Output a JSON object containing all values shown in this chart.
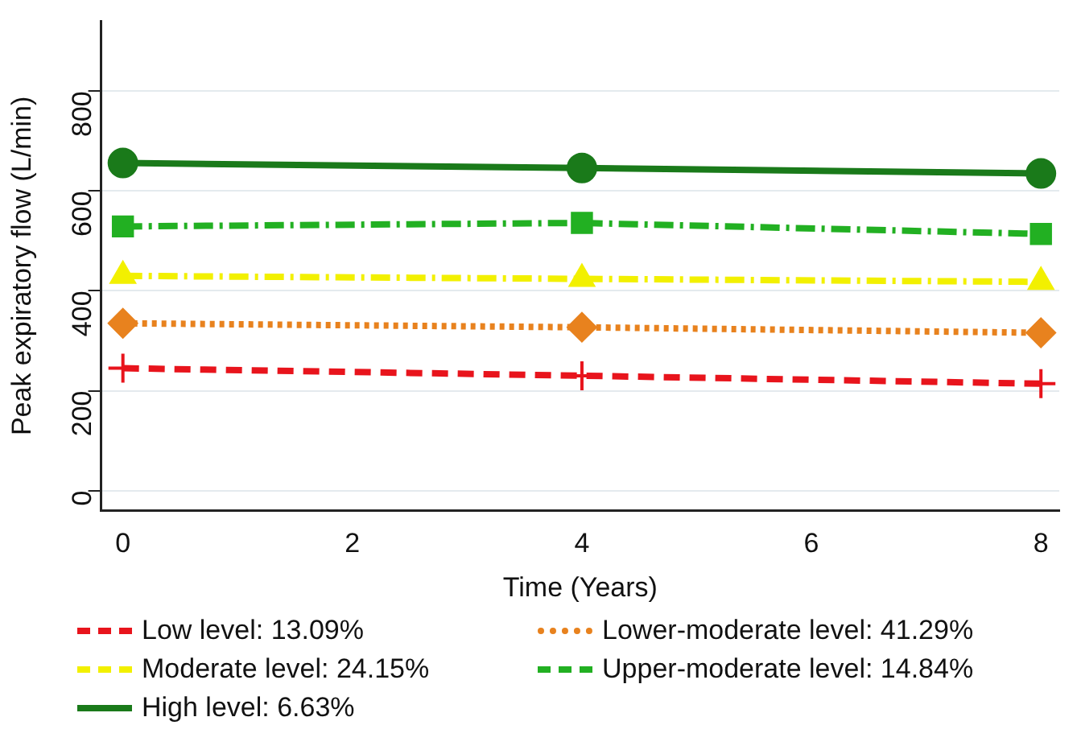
{
  "chart_data": {
    "type": "line",
    "xlabel": "Time (Years)",
    "ylabel": "Peak expiratory flow (L/min)",
    "x": [
      0,
      4,
      8
    ],
    "xlim": [
      -0.19,
      8.16
    ],
    "xticks": [
      0,
      2,
      4,
      6,
      8
    ],
    "ylim": [
      -40,
      940
    ],
    "yticks": [
      0,
      200,
      400,
      600,
      800
    ],
    "grid": "y",
    "legend": "bottom",
    "series": [
      {
        "name": "Low level: 13.09%",
        "color": "#e8141c",
        "values": [
          245,
          230,
          214
        ],
        "marker": "cross",
        "line_style": "dashed"
      },
      {
        "name": "Lower-moderate level: 41.29%",
        "color": "#e8821e",
        "values": [
          335,
          327,
          316
        ],
        "marker": "diamond",
        "line_style": "dotted"
      },
      {
        "name": "Moderate level: 24.15%",
        "color": "#f2f000",
        "values": [
          430,
          424,
          418
        ],
        "marker": "triangle",
        "line_style": "dashdot"
      },
      {
        "name": "Upper-moderate level: 14.84%",
        "color": "#22b022",
        "values": [
          529,
          536,
          514
        ],
        "marker": "square",
        "line_style": "dashdot"
      },
      {
        "name": "High level: 6.63%",
        "color": "#1a7a1a",
        "values": [
          656,
          646,
          635
        ],
        "marker": "circle",
        "line_style": "solid"
      }
    ]
  }
}
